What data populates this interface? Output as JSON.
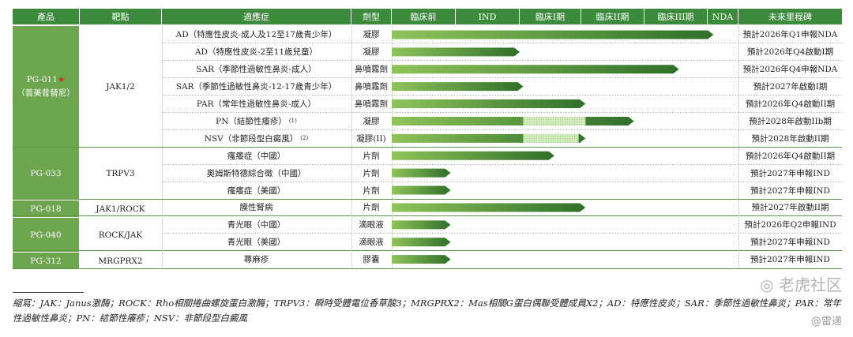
{
  "headers": {
    "product": "產品",
    "target": "靶點",
    "indication": "適應症",
    "dosage": "劑型",
    "preclinical": "臨床前",
    "ind": "IND",
    "phase1": "臨床I期",
    "phase2": "臨床II期",
    "phase3": "臨床III期",
    "nda": "NDA",
    "milestone": "未來里程碑"
  },
  "groups": [
    {
      "product": "PG-011",
      "star": "★",
      "sub": "（普美昔替尼）",
      "target": "JAK1/2"
    },
    {
      "product": "PG-033",
      "star": "",
      "sub": "",
      "target": "TRPV3"
    },
    {
      "product": "PG-018",
      "star": "",
      "sub": "",
      "target": "JAK1/ROCK"
    },
    {
      "product": "PG-040",
      "star": "",
      "sub": "",
      "target": "ROCK/JAK"
    },
    {
      "product": "PG-312",
      "star": "",
      "sub": "",
      "target": "MRGPRX2"
    }
  ],
  "rows": [
    {
      "indication": "AD（特應性皮炎-成人及12至17歲青少年）",
      "dosage": "凝膠",
      "progress": 0.93,
      "hatch": null,
      "milestone": "預計2026年Q1申報NDA"
    },
    {
      "indication": "AD（特應性皮炎-2至11歲兒童）",
      "dosage": "凝膠",
      "progress": 0.37,
      "hatch": null,
      "milestone": "預計2026年Q4啟動I期"
    },
    {
      "indication": "SAR（季節性過敏性鼻炎-成人）",
      "dosage": "鼻噴霧劑",
      "progress": 0.83,
      "hatch": null,
      "milestone": "預計2026年Q4申報NDA"
    },
    {
      "indication": "SAR（季節性過敏性鼻炎-12-17歲青少年）",
      "dosage": "鼻噴霧劑",
      "progress": 0.38,
      "hatch": null,
      "milestone": "預計2027年啟動I期"
    },
    {
      "indication": "PAR（常年性過敏性鼻炎-成人）",
      "dosage": "鼻噴霧劑",
      "progress": 0.56,
      "hatch": null,
      "milestone": "預計2026年Q4啟動II期"
    },
    {
      "indication": "PN（結節性癢疹）",
      "note": "(1)",
      "dosage": "凝膠",
      "progress": 0.7,
      "hatch": [
        0.38,
        0.56
      ],
      "milestone": "預計2028年啟動IIb期"
    },
    {
      "indication": "NSV（非節段型白癜風）",
      "note": "(2)",
      "dosage": "凝膠(II)",
      "progress": 0.56,
      "hatch": [
        0.38,
        0.54
      ],
      "milestone": "預計2028年啟動II期"
    },
    {
      "indication": "瘙癢症（中國）",
      "dosage": "片劑",
      "progress": 0.47,
      "hatch": null,
      "milestone": "預計2026年Q4啟動II期"
    },
    {
      "indication": "奧姆斯特德綜合徵（中國）",
      "dosage": "片劑",
      "progress": 0.17,
      "hatch": null,
      "milestone": "預計2027年申報IND"
    },
    {
      "indication": "瘙癢症（美國）",
      "dosage": "片劑",
      "progress": 0.17,
      "hatch": null,
      "milestone": "預計2027年申報IND"
    },
    {
      "indication": "膜性腎病",
      "dosage": "片劑",
      "progress": 0.56,
      "hatch": null,
      "milestone": "預計2027年啟動II期"
    },
    {
      "indication": "青光眼（中國）",
      "dosage": "滴眼液",
      "progress": 0.17,
      "hatch": null,
      "milestone": "預計2026年Q2申報IND"
    },
    {
      "indication": "青光眼（美國）",
      "dosage": "滴眼液",
      "progress": 0.17,
      "hatch": null,
      "milestone": "預計2027年申報IND"
    },
    {
      "indication": "蕁麻疹",
      "dosage": "膠囊",
      "progress": 0.17,
      "hatch": null,
      "milestone": "預計2027年申報IND"
    }
  ],
  "footnote": "縮寫：JAK：Janus激酶；ROCK：Rho相關捲曲螺旋蛋白激酶；TRPV3：瞬時受體電位香草酸3；MRGPRX2：Mas相關G蛋白偶聯受體成員X2；AD：特應性皮炎；SAR：季節性過敏性鼻炎；PAR：常年性過敏性鼻炎；PN：結節性癢疹；NSV：非節段型白癜風",
  "watermark_1": "老虎社区",
  "watermark_2": "@雷递",
  "colors": {
    "header": "#3c8a3c",
    "product_cell": "#6da64e",
    "bar_start": "#8fc45a",
    "bar_end": "#2f6f2a",
    "hatch": "#cfe6b8"
  }
}
